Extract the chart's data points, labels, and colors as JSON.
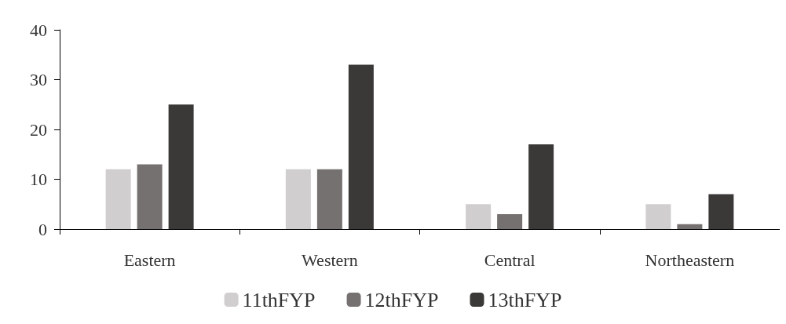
{
  "chart_data": {
    "type": "bar",
    "categories": [
      "Eastern",
      "Western",
      "Central",
      "Northeastern"
    ],
    "series": [
      {
        "name": "11thFYP",
        "color": "#d0cece",
        "values": [
          12,
          12,
          5,
          5
        ]
      },
      {
        "name": "12thFYP",
        "color": "#767171",
        "values": [
          13,
          12,
          3,
          1
        ]
      },
      {
        "name": "13thFYP",
        "color": "#3b3838",
        "values": [
          25,
          33,
          17,
          7
        ]
      }
    ],
    "ylim": [
      0,
      40
    ],
    "yticks": [
      0,
      10,
      20,
      30,
      40
    ],
    "grid": false,
    "legend": "bottom"
  }
}
